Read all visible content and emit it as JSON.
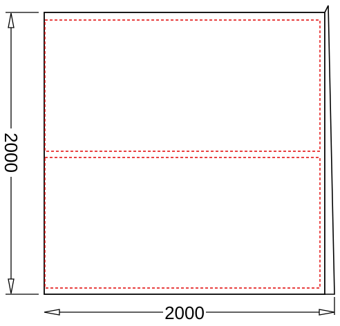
{
  "drawing": {
    "width_label": "2000",
    "height_label": "2000",
    "colors": {
      "outline": "#000000",
      "dashed_line": "#e00000",
      "background": "#ffffff"
    }
  }
}
